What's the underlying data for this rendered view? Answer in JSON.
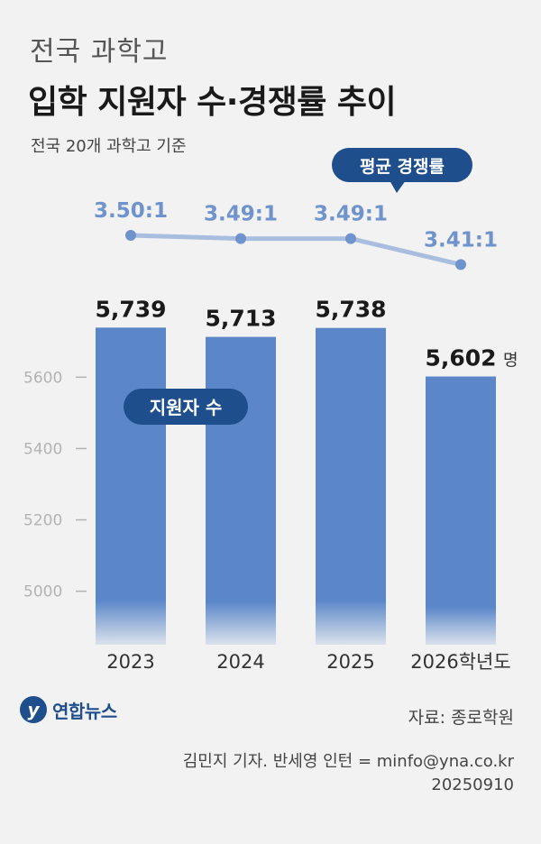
{
  "header": {
    "subtitle_top": "전국 과학고",
    "title": "입학 지원자 수·경쟁률 추이",
    "basis": "전국 20개 과학고 기준"
  },
  "chart_data": {
    "type": "bar",
    "categories": [
      "2023",
      "2024",
      "2025",
      "2026학년도"
    ],
    "series": [
      {
        "name": "지원자 수",
        "values": [
          5739,
          5713,
          5738,
          5602
        ],
        "labels": [
          "5,739",
          "5,713",
          "5,738",
          "5,602"
        ],
        "unit": "명",
        "color": "#5b87c9"
      },
      {
        "name": "평균 경쟁률",
        "type": "line",
        "values": [
          3.5,
          3.49,
          3.49,
          3.41
        ],
        "labels": [
          "3.50:1",
          "3.49:1",
          "3.49:1",
          "3.41:1"
        ],
        "color": "#a9bedf",
        "label_color": "#6f93cc"
      }
    ],
    "yticks": [
      5000,
      5200,
      5400,
      5600
    ],
    "ytick_labels": [
      "5000",
      "5200",
      "5400",
      "5600"
    ],
    "ylim": [
      4850,
      5760
    ],
    "rate_lim": [
      3.3,
      3.55
    ],
    "grid": false,
    "badge_color": "#1f4e8c"
  },
  "footer": {
    "logo_text": "연합뉴스",
    "source": "자료: 종로학원",
    "credit_line1": "김민지 기자. 반세영 인턴 = minfo@yna.co.kr",
    "credit_line2": "20250910"
  }
}
